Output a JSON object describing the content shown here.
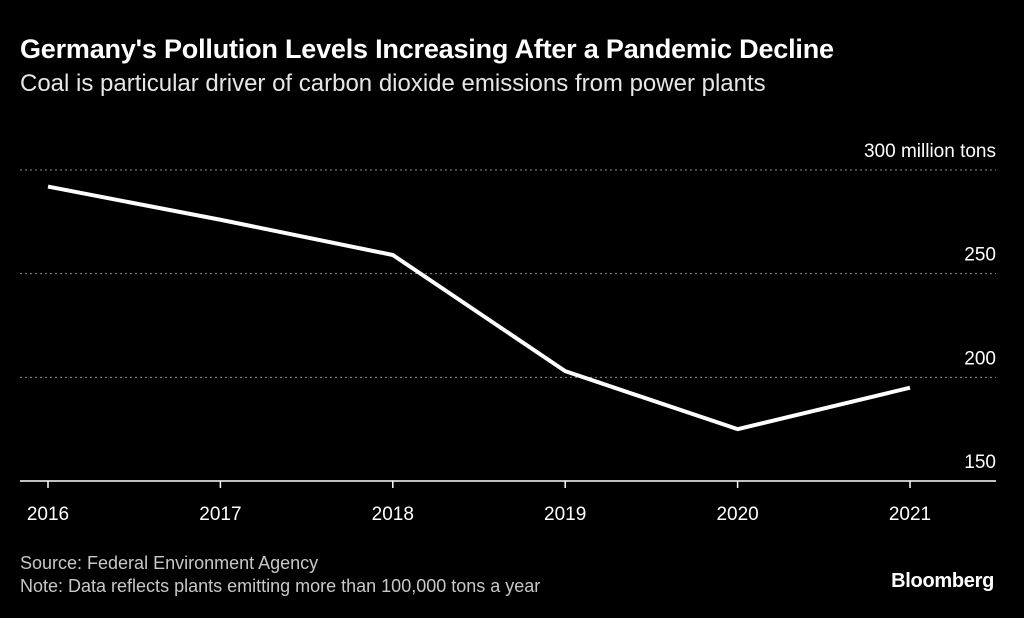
{
  "header": {
    "title": "Germany's Pollution Levels Increasing After a Pandemic Decline",
    "subtitle": "Coal is particular driver of carbon dioxide emissions from power plants"
  },
  "footer": {
    "source": "Source: Federal Environment Agency",
    "note": "Note: Data reflects plants emitting more than 100,000 tons a year",
    "logo": "Bloomberg"
  },
  "colors": {
    "background": "#000000",
    "line": "#ffffff",
    "gridline": "#8c8c8c",
    "text": "#ffffff",
    "muted_text": "#c8c8c8"
  },
  "chart_data": {
    "type": "line",
    "title": "Germany's Pollution Levels Increasing After a Pandemic Decline",
    "subtitle": "Coal is particular driver of carbon dioxide emissions from power plants",
    "xlabel": "",
    "ylabel": "",
    "x": [
      2016,
      2017,
      2018,
      2019,
      2020,
      2021
    ],
    "x_tick_labels": [
      "2016",
      "2017",
      "2018",
      "2019",
      "2020",
      "2021"
    ],
    "series": [
      {
        "name": "CO2 emissions from power plants",
        "values": [
          292,
          276,
          259,
          203,
          175,
          195
        ]
      }
    ],
    "y_ticks": [
      150,
      200,
      250,
      300
    ],
    "y_tick_labels": [
      "150",
      "200",
      "250",
      "300 million tons"
    ],
    "ylim": [
      150,
      300
    ],
    "y_grid": true,
    "y_axis_side": "right"
  }
}
